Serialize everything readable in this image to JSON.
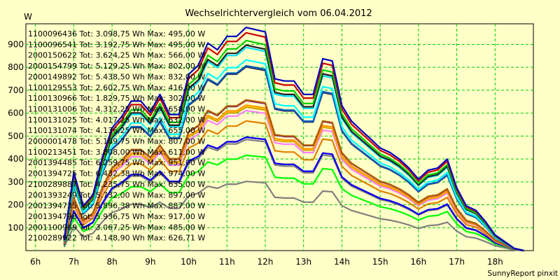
{
  "chart_data": {
    "type": "line",
    "title": "Wechselrichtervergleich vom 06.04.2012",
    "ylabel": "W",
    "xlabel": "",
    "footer": "SunnyReport pinxit",
    "ylim": [
      0,
      990
    ],
    "xlim": [
      5.75,
      19.0
    ],
    "grid": true,
    "legend_position": "top-left",
    "y_ticks": [
      100,
      200,
      300,
      400,
      500,
      600,
      700,
      800,
      900
    ],
    "x_ticks": [
      {
        "value": 6,
        "label": "6h"
      },
      {
        "value": 7,
        "label": "7h"
      },
      {
        "value": 8,
        "label": "8h"
      },
      {
        "value": 9,
        "label": "9h"
      },
      {
        "value": 10,
        "label": "10h"
      },
      {
        "value": 11,
        "label": "11h"
      },
      {
        "value": 12,
        "label": "12h"
      },
      {
        "value": 13,
        "label": "13h"
      },
      {
        "value": 14,
        "label": "14h"
      },
      {
        "value": 15,
        "label": "15h"
      },
      {
        "value": 16,
        "label": "16h"
      },
      {
        "value": 17,
        "label": "17h"
      },
      {
        "value": 18,
        "label": "18h"
      }
    ],
    "x": [
      6.75,
      7.0,
      7.25,
      7.5,
      7.75,
      8.0,
      8.25,
      8.5,
      8.75,
      9.0,
      9.25,
      9.5,
      9.75,
      10.0,
      10.25,
      10.5,
      10.75,
      11.0,
      11.25,
      11.5,
      11.75,
      12.0,
      12.25,
      12.5,
      12.75,
      13.0,
      13.25,
      13.5,
      13.75,
      14.0,
      14.25,
      14.5,
      14.75,
      15.0,
      15.25,
      15.5,
      15.75,
      16.0,
      16.25,
      16.5,
      16.75,
      17.0,
      17.25,
      17.5,
      17.75,
      18.0,
      18.25,
      18.5,
      18.75
    ],
    "reference_profile": [
      0.05,
      0.35,
      0.2,
      0.25,
      0.42,
      0.55,
      0.6,
      0.67,
      0.67,
      0.62,
      0.7,
      0.61,
      0.61,
      0.79,
      0.83,
      0.93,
      0.9,
      0.96,
      0.96,
      1.0,
      0.99,
      0.98,
      0.77,
      0.76,
      0.76,
      0.7,
      0.7,
      0.86,
      0.85,
      0.65,
      0.58,
      0.54,
      0.5,
      0.46,
      0.44,
      0.41,
      0.37,
      0.32,
      0.36,
      0.37,
      0.41,
      0.28,
      0.2,
      0.18,
      0.13,
      0.07,
      0.04,
      0.01,
      0.0
    ],
    "series": [
      {
        "name": "1100096436 Tot: 3.098,75 Wh Max: 495,00 W",
        "color": "#ff0000",
        "peak": 495
      },
      {
        "name": "1100096541 Tot: 3.192,75 Wh Max: 495,00 W",
        "color": "#0000ff",
        "peak": 495
      },
      {
        "name": "2000150622 Tot: 3.624,25 Wh Max: 566,00 W",
        "color": "#e08000",
        "peak": 566
      },
      {
        "name": "2000154799 Tot: 5.129,25 Wh Max: 802,00 W",
        "color": "#303060",
        "peak": 802
      },
      {
        "name": "2000149892 Tot: 5.438,50 Wh Max: 832,00 W",
        "color": "#00ffff",
        "peak": 832
      },
      {
        "name": "1100129553 Tot: 2.602,75 Wh Max: 416,00 W",
        "color": "#00ff00",
        "peak": 416
      },
      {
        "name": "1100130966 Tot: 1.829,75 Wh Max: 302,00 W",
        "color": "#808080",
        "peak": 302
      },
      {
        "name": "1100131006 Tot: 4.312,25 Wh Max: 658,00 W",
        "color": "#b06000",
        "peak": 658
      },
      {
        "name": "1100131025 Tot: 4.017,25 Wh Max: 632,00 W",
        "color": "#ffff00",
        "peak": 632
      },
      {
        "name": "1100131074 Tot: 4.136,25 Wh Max: 655,00 W",
        "color": "#800080",
        "peak": 655
      },
      {
        "name": "2000001478 Tot: 5.169,75 Wh Max: 807,00 W",
        "color": "#0060c0",
        "peak": 807
      },
      {
        "name": "1100213451 Tot: 3.808,00 Wh Max: 611,00 W",
        "color": "#ff80ff",
        "peak": 611
      },
      {
        "name": "2001394485 Tot: 6.259,75 Wh Max: 951,00 W",
        "color": "#cc0000",
        "peak": 951
      },
      {
        "name": "2001394725 Tot: 6.432,38 Wh Max: 974,00 W",
        "color": "#0000c0",
        "peak": 974
      },
      {
        "name": "2100289887 Tot: 4.235,75 Wh Max: 635,00 W",
        "color": "#ff9000",
        "peak": 635
      },
      {
        "name": "2001393249 Tot: 5.732,00 Wh Max: 897,00 W",
        "color": "#202020",
        "peak": 897
      },
      {
        "name": "2001394735 Tot: 5.896,38 Wh Max: 887,00 W",
        "color": "#00e0ff",
        "peak": 887
      },
      {
        "name": "2001394798 Tot: 5.936,75 Wh Max: 917,00 W",
        "color": "#00d000",
        "peak": 917
      },
      {
        "name": "2001100969 Tot: 3.067,25 Wh Max: 485,00 W",
        "color": "#808080",
        "peak": 485
      },
      {
        "name": "2100289922 Tot: 4.148,90 Wh Max: 626,71 W",
        "color": "#cc8400",
        "peak": 626.71
      }
    ]
  }
}
